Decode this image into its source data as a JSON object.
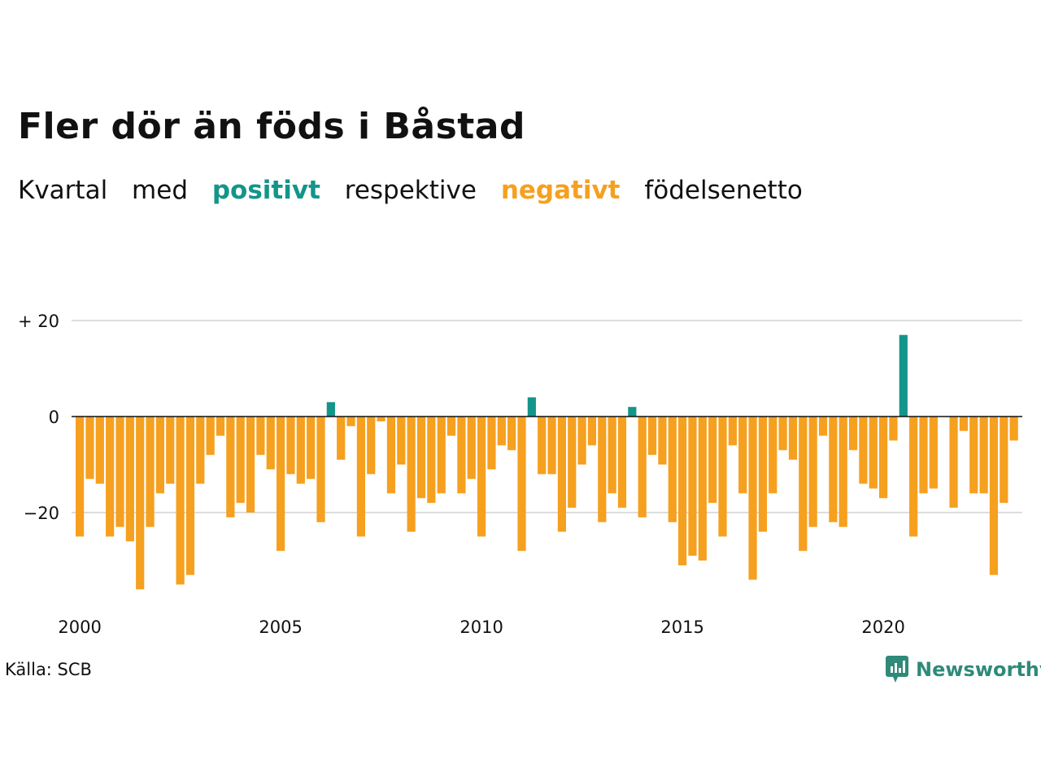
{
  "title": "Fler dör än föds i Båstad",
  "subtitle": {
    "w1": "Kvartal",
    "w2": "med",
    "positive": "positivt",
    "w3": "respektive",
    "negative": "negativt",
    "w4": "födelsenetto"
  },
  "source": "Källa: SCB",
  "brand": "Newsworthy",
  "colors": {
    "positive": "#13958a",
    "negative": "#f6a01f",
    "brand": "#2f8a79",
    "grid": "#dddddd"
  },
  "chart_data": {
    "type": "bar",
    "ylim": [
      -36,
      20
    ],
    "yticks": [
      {
        "value": 20,
        "label": "+ 20"
      },
      {
        "value": 0,
        "label": "0"
      },
      {
        "value": -20,
        "label": "−20"
      }
    ],
    "xticks": [
      {
        "value": 2000,
        "label": "2000"
      },
      {
        "value": 2005,
        "label": "2005"
      },
      {
        "value": 2010,
        "label": "2010"
      },
      {
        "value": 2015,
        "label": "2015"
      },
      {
        "value": 2020,
        "label": "2020"
      }
    ],
    "x_start": 2000,
    "periods_per_year": 4,
    "values": [
      -25,
      -13,
      -14,
      -25,
      -23,
      -26,
      -36,
      -23,
      -16,
      -14,
      -35,
      -33,
      -14,
      -8,
      -4,
      -21,
      -18,
      -20,
      -8,
      -11,
      -28,
      -12,
      -14,
      -13,
      -22,
      3,
      -9,
      -2,
      -25,
      -12,
      -1,
      -16,
      -10,
      -24,
      -17,
      -18,
      -16,
      -4,
      -16,
      -13,
      -25,
      -11,
      -6,
      -7,
      -28,
      4,
      -12,
      -12,
      -24,
      -19,
      -10,
      -6,
      -22,
      -16,
      -19,
      2,
      -21,
      -8,
      -10,
      -22,
      -31,
      -29,
      -30,
      -18,
      -25,
      -6,
      -16,
      -34,
      -24,
      -16,
      -7,
      -9,
      -28,
      -23,
      -4,
      -22,
      -23,
      -7,
      -14,
      -15,
      -17,
      -5,
      17,
      -25,
      -16,
      -15,
      0,
      -19,
      -3,
      -16,
      -16,
      -33,
      -18,
      -5
    ]
  }
}
